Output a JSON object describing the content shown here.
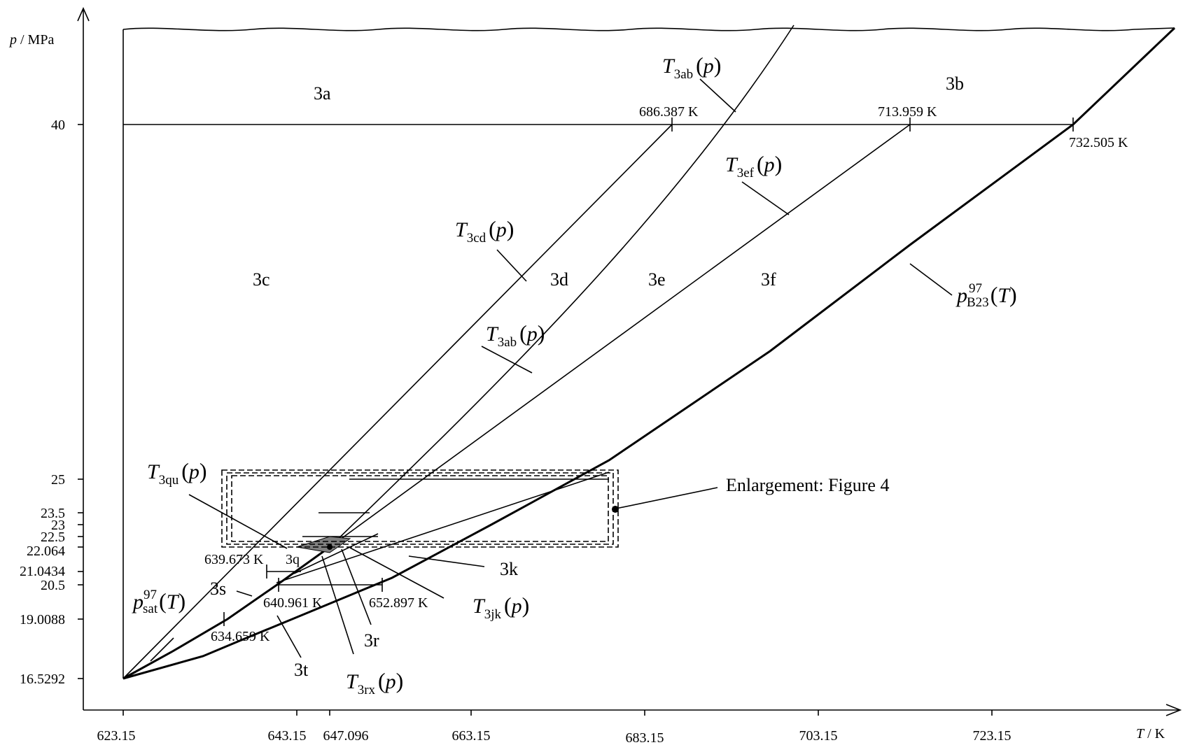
{
  "axes": {
    "x_label_var": "T",
    "x_label_unit": " / K",
    "y_label_var": "p",
    "y_label_unit": " / MPa",
    "x_ticks": [
      "623.15",
      "643.15",
      "647.096",
      "663.15",
      "683.15",
      "703.15",
      "723.15"
    ],
    "y_ticks": [
      "40",
      "25",
      "23.5",
      "23",
      "22.5",
      "22.064",
      "21.0434",
      "20.5",
      "19.0088",
      "16.5292"
    ]
  },
  "regions": [
    "3a",
    "3b",
    "3c",
    "3d",
    "3e",
    "3f",
    "3k",
    "3q",
    "3r",
    "3s",
    "3t"
  ],
  "temperature_marks": [
    "686.387 K",
    "713.959 K",
    "732.505 K",
    "639.673 K",
    "640.961 K",
    "652.897 K",
    "634.659 K"
  ],
  "curve_labels": {
    "t3ab_top": {
      "base": "T",
      "sub": "3ab",
      "arg": "p"
    },
    "t3ab_mid": {
      "base": "T",
      "sub": "3ab",
      "arg": "p"
    },
    "t3cd": {
      "base": "T",
      "sub": "3cd",
      "arg": "p"
    },
    "t3ef": {
      "base": "T",
      "sub": "3ef",
      "arg": "p"
    },
    "t3qu": {
      "base": "T",
      "sub": "3qu",
      "arg": "p"
    },
    "t3jk": {
      "base": "T",
      "sub": "3jk",
      "arg": "p"
    },
    "t3rx": {
      "base": "T",
      "sub": "3rx",
      "arg": "p"
    },
    "psat": {
      "base": "p",
      "sup": "97",
      "sub": "sat",
      "arg": "T"
    },
    "pb23": {
      "base": "p",
      "sup": "97",
      "sub": "B23",
      "arg": "T"
    }
  },
  "enlargement_label": "Enlargement: Figure 4"
}
